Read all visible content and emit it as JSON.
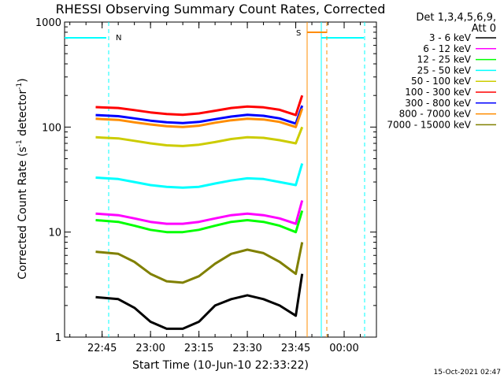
{
  "chart_data": {
    "type": "line",
    "title": "RHESSI Observing Summary Count Rates, Corrected",
    "xlabel": "Start Time (10-Jun-10 22:33:22)",
    "ylabel": "Corrected Count Rate (s",
    "ylabel_sup1": "-1",
    "ylabel_mid": " detector",
    "ylabel_sup2": "-1",
    "ylabel_end": ")",
    "yscale": "log",
    "ylim": [
      1,
      1000
    ],
    "yticks": [
      {
        "value": 1,
        "label": "1"
      },
      {
        "value": 10,
        "label": "10"
      },
      {
        "value": 100,
        "label": "100"
      },
      {
        "value": 1000,
        "label": "1000"
      }
    ],
    "xlim": [
      "22:33:22",
      "00:10:00"
    ],
    "xticks": [
      {
        "time": "22:45",
        "label": "22:45"
      },
      {
        "time": "23:00",
        "label": "23:00"
      },
      {
        "time": "23:15",
        "label": "23:15"
      },
      {
        "time": "23:30",
        "label": "23:30"
      },
      {
        "time": "23:45",
        "label": "23:45"
      },
      {
        "time": "00:00",
        "label": "00:00"
      }
    ],
    "legend_header": [
      "Det 1,3,4,5,6,9,",
      "Att 0"
    ],
    "legend_placement": "right",
    "timestamp": "15-Oct-2021 02:47",
    "series": [
      {
        "name": "3 - 6 keV",
        "color": "#000000",
        "x": [
          "22:43",
          "22:50",
          "22:55",
          "23:00",
          "23:05",
          "23:10",
          "23:15",
          "23:20",
          "23:25",
          "23:30",
          "23:35",
          "23:40",
          "23:45",
          "23:47"
        ],
        "y": [
          2.4,
          2.3,
          1.9,
          1.4,
          1.2,
          1.2,
          1.4,
          2.0,
          2.3,
          2.5,
          2.3,
          2.0,
          1.6,
          4.0
        ]
      },
      {
        "name": "6 - 12 keV",
        "color": "#ff00ff",
        "x": [
          "22:43",
          "22:50",
          "22:55",
          "23:00",
          "23:05",
          "23:10",
          "23:15",
          "23:20",
          "23:25",
          "23:30",
          "23:35",
          "23:40",
          "23:45",
          "23:47"
        ],
        "y": [
          15,
          14.5,
          13.5,
          12.5,
          12,
          12,
          12.5,
          13.5,
          14.5,
          15,
          14.5,
          13.5,
          12,
          20
        ]
      },
      {
        "name": "12 - 25 keV",
        "color": "#00ff00",
        "x": [
          "22:43",
          "22:50",
          "22:55",
          "23:00",
          "23:05",
          "23:10",
          "23:15",
          "23:20",
          "23:25",
          "23:30",
          "23:35",
          "23:40",
          "23:45",
          "23:47"
        ],
        "y": [
          13,
          12.5,
          11.5,
          10.5,
          10,
          10,
          10.5,
          11.5,
          12.5,
          13,
          12.5,
          11.5,
          10,
          16
        ]
      },
      {
        "name": "25 - 50 keV",
        "color": "#00ffff",
        "x": [
          "22:43",
          "22:50",
          "22:55",
          "23:00",
          "23:05",
          "23:10",
          "23:15",
          "23:20",
          "23:25",
          "23:30",
          "23:35",
          "23:40",
          "23:45",
          "23:47"
        ],
        "y": [
          33,
          32,
          30,
          28,
          27,
          26.5,
          27,
          29,
          31,
          32.5,
          32,
          30,
          28,
          45
        ]
      },
      {
        "name": "50 - 100 keV",
        "color": "#cccc00",
        "x": [
          "22:43",
          "22:50",
          "22:55",
          "23:00",
          "23:05",
          "23:10",
          "23:15",
          "23:20",
          "23:25",
          "23:30",
          "23:35",
          "23:40",
          "23:45",
          "23:47"
        ],
        "y": [
          80,
          78,
          74,
          70,
          67,
          66,
          68,
          72,
          77,
          80,
          79,
          75,
          70,
          100
        ]
      },
      {
        "name": "100 - 300 keV",
        "color": "#ff0000",
        "x": [
          "22:43",
          "22:50",
          "22:55",
          "23:00",
          "23:05",
          "23:10",
          "23:15",
          "23:20",
          "23:25",
          "23:30",
          "23:35",
          "23:40",
          "23:45",
          "23:47"
        ],
        "y": [
          155,
          152,
          145,
          138,
          133,
          131,
          135,
          143,
          152,
          157,
          154,
          146,
          130,
          200
        ]
      },
      {
        "name": "300 - 800 keV",
        "color": "#0000ff",
        "x": [
          "22:43",
          "22:50",
          "22:55",
          "23:00",
          "23:05",
          "23:10",
          "23:15",
          "23:20",
          "23:25",
          "23:30",
          "23:35",
          "23:40",
          "23:45",
          "23:47"
        ],
        "y": [
          130,
          127,
          121,
          115,
          111,
          109,
          112,
          119,
          126,
          131,
          128,
          121,
          108,
          160
        ]
      },
      {
        "name": "800 - 7000 keV",
        "color": "#ff8c00",
        "x": [
          "22:43",
          "22:50",
          "22:55",
          "23:00",
          "23:05",
          "23:10",
          "23:15",
          "23:20",
          "23:25",
          "23:30",
          "23:35",
          "23:40",
          "23:45",
          "23:47"
        ],
        "y": [
          120,
          117,
          111,
          106,
          102,
          100,
          103,
          110,
          116,
          120,
          118,
          112,
          100,
          150
        ]
      },
      {
        "name": "7000 - 15000 keV",
        "color": "#808000",
        "x": [
          "22:43",
          "22:50",
          "22:55",
          "23:00",
          "23:05",
          "23:10",
          "23:15",
          "23:20",
          "23:25",
          "23:30",
          "23:35",
          "23:40",
          "23:45",
          "23:47"
        ],
        "y": [
          6.5,
          6.2,
          5.2,
          4.0,
          3.4,
          3.3,
          3.8,
          5.0,
          6.2,
          6.8,
          6.3,
          5.2,
          4.0,
          8.0
        ]
      }
    ],
    "annotations": [
      {
        "label": "N",
        "color": "#00ffff"
      },
      {
        "label": "S",
        "color": "#ff8c00"
      }
    ]
  }
}
